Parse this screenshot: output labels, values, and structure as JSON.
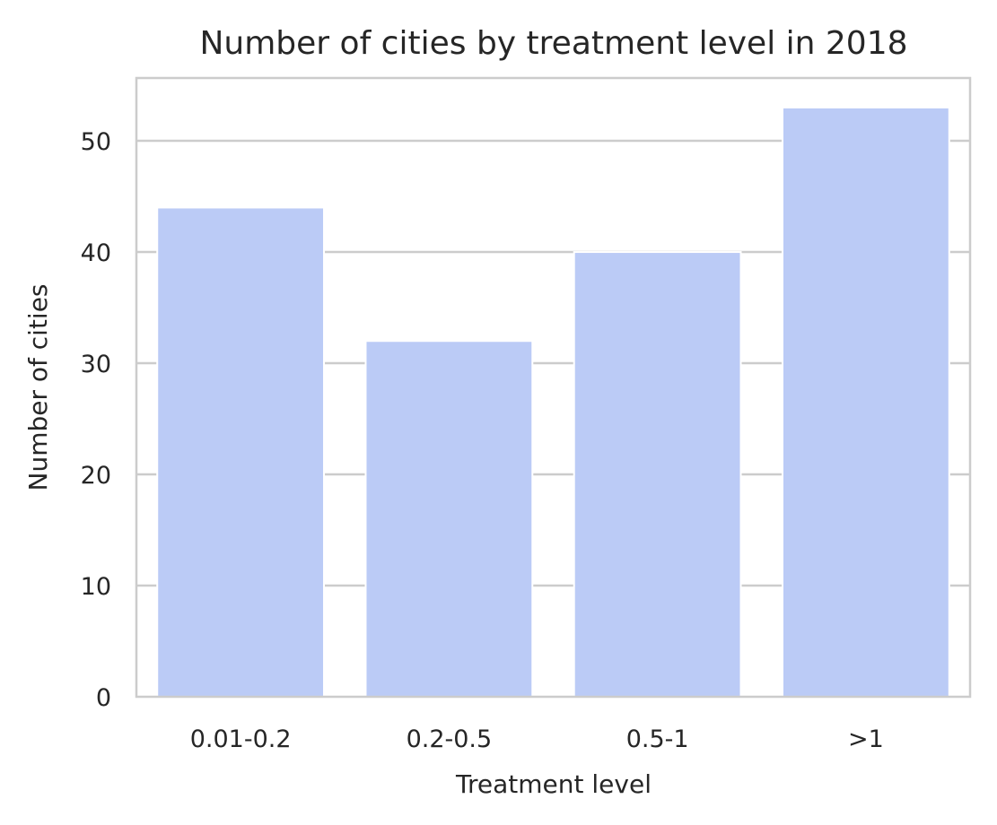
{
  "chart_data": {
    "type": "bar",
    "title": "Number of cities by treatment level in 2018",
    "xlabel": "Treatment level",
    "ylabel": "Number of cities",
    "categories": [
      "0.01-0.2",
      "0.2-0.5",
      "0.5-1",
      ">1"
    ],
    "values": [
      44,
      32,
      40,
      53
    ],
    "ylim": [
      0,
      55.65
    ],
    "yticks": [
      0,
      10,
      20,
      30,
      40,
      50
    ],
    "grid": "horizontal",
    "bar_color": "#bbcbf6",
    "legend": "none"
  }
}
